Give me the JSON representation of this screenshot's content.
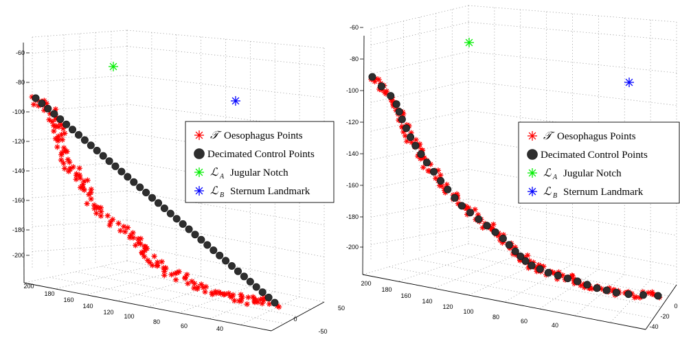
{
  "chart_data": [
    {
      "type": "scatter3d",
      "z_ticks": [
        "-60",
        "-80",
        "-100",
        "-120",
        "-140",
        "-160",
        "-180",
        "-200"
      ],
      "x_ticks": [
        "200",
        "180",
        "160",
        "140",
        "120",
        "100",
        "80",
        "60",
        "40"
      ],
      "y_ticks": [
        "-50",
        "0",
        "50"
      ],
      "grid": true,
      "legend_placement": "right",
      "legend": [
        {
          "symbol": "𝒯",
          "label": "Oesophagus Points",
          "marker": "star",
          "color": "#ff0000"
        },
        {
          "symbol": "",
          "label": "Decimated Control Points",
          "marker": "circle",
          "color": "#333333"
        },
        {
          "symbol": "ℒ",
          "subscript": "A",
          "label": "Jugular Notch",
          "marker": "star",
          "color": "#00ee00"
        },
        {
          "symbol": "ℒ",
          "subscript": "B",
          "label": "Sternum Landmark",
          "marker": "star",
          "color": "#0000ff"
        }
      ],
      "series": [
        {
          "name": "Oesophagus Points",
          "color": "#ff0000",
          "marker": "star"
        },
        {
          "name": "Decimated Control Points",
          "color": "#333333",
          "marker": "circle"
        },
        {
          "name": "Jugular Notch",
          "color": "#00ee00",
          "marker": "star"
        },
        {
          "name": "Sternum Landmark",
          "color": "#0000ff",
          "marker": "star"
        }
      ]
    },
    {
      "type": "scatter3d",
      "z_ticks": [
        "-60",
        "-80",
        "-100",
        "-120",
        "-140",
        "-160",
        "-180",
        "-200"
      ],
      "x_ticks": [
        "200",
        "180",
        "160",
        "140",
        "120",
        "100",
        "80",
        "60",
        "40"
      ],
      "y_ticks": [
        "-40",
        "-20",
        "0"
      ],
      "grid": true,
      "legend_placement": "right",
      "legend": [
        {
          "symbol": "𝒯",
          "label": "Oesophagus Points",
          "marker": "star",
          "color": "#ff0000"
        },
        {
          "symbol": "",
          "label": "Decimated Control Points",
          "marker": "circle",
          "color": "#333333"
        },
        {
          "symbol": "ℒ",
          "subscript": "A",
          "label": "Jugular Notch",
          "marker": "star",
          "color": "#00ee00"
        },
        {
          "symbol": "ℒ",
          "subscript": "B",
          "label": "Sternum Landmark",
          "marker": "star",
          "color": "#0000ff"
        }
      ],
      "series": [
        {
          "name": "Oesophagus Points",
          "color": "#ff0000",
          "marker": "star"
        },
        {
          "name": "Decimated Control Points",
          "color": "#333333",
          "marker": "circle"
        },
        {
          "name": "Jugular Notch",
          "color": "#00ee00",
          "marker": "star"
        },
        {
          "name": "Sternum Landmark",
          "color": "#0000ff",
          "marker": "star"
        }
      ]
    }
  ]
}
